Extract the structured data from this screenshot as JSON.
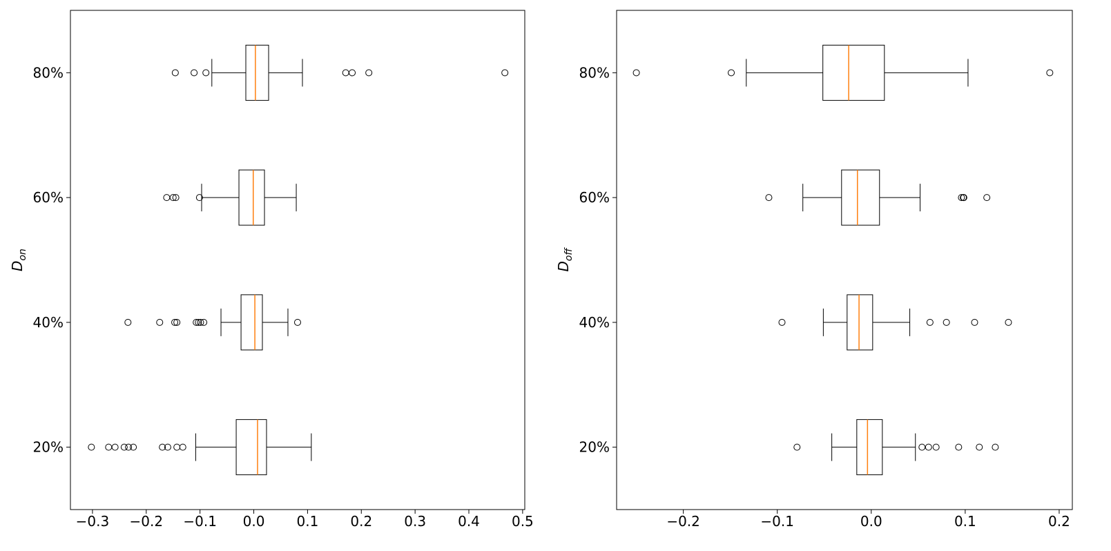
{
  "chart_data": [
    {
      "type": "box",
      "ylabel": "D",
      "ylabel_sub": "on",
      "categories": [
        "20%",
        "40%",
        "60%",
        "80%"
      ],
      "box_color": "#000000",
      "median_color": "#ff7f0e",
      "xlim": [
        -0.341,
        0.504
      ],
      "xticks": [
        {
          "value": -0.3,
          "label": "−0.3"
        },
        {
          "value": -0.2,
          "label": "−0.2"
        },
        {
          "value": -0.1,
          "label": "−0.1"
        },
        {
          "value": 0,
          "label": "0.0"
        },
        0.1,
        0.2,
        0.3,
        0.4,
        0.5
      ],
      "boxes": [
        {
          "whislo": -0.108,
          "q1": -0.0327,
          "med": 0.007,
          "q3": 0.0237,
          "whishi": 0.107,
          "fliers": [
            -0.302,
            -0.27,
            -0.258,
            -0.241,
            -0.233,
            -0.224,
            -0.17,
            -0.16,
            -0.143,
            -0.132
          ]
        },
        {
          "whislo": -0.061,
          "q1": -0.0237,
          "med": 0.002,
          "q3": 0.016,
          "whishi": 0.0635,
          "fliers": [
            -0.234,
            -0.175,
            -0.147,
            -0.143,
            -0.107,
            -0.103,
            -0.099,
            -0.093,
            0.0815
          ]
        },
        {
          "whislo": -0.097,
          "q1": -0.0276,
          "med": -0.001,
          "q3": 0.0199,
          "whishi": 0.079,
          "fliers": [
            -0.162,
            -0.15,
            -0.145,
            -0.101
          ]
        },
        {
          "whislo": -0.078,
          "q1": -0.0148,
          "med": 0.003,
          "q3": 0.0276,
          "whishi": 0.0905,
          "fliers": [
            -0.146,
            -0.111,
            -0.089,
            0.171,
            0.183,
            0.214,
            0.467
          ]
        }
      ]
    },
    {
      "type": "box",
      "ylabel": "D",
      "ylabel_sub": "off",
      "categories": [
        "20%",
        "40%",
        "60%",
        "80%"
      ],
      "box_color": "#000000",
      "median_color": "#ff7f0e",
      "xlim": [
        -0.271,
        0.214
      ],
      "xticks": [
        {
          "value": -0.2,
          "label": "−0.2"
        },
        {
          "value": -0.1,
          "label": "−0.1"
        },
        {
          "value": 0,
          "label": "0.0"
        },
        0.1,
        0.2
      ],
      "boxes": [
        {
          "whislo": -0.042,
          "q1": -0.0154,
          "med": -0.004,
          "q3": 0.0118,
          "whishi": 0.047,
          "fliers": [
            -0.079,
            0.054,
            0.061,
            0.069,
            0.093,
            0.115,
            0.132
          ]
        },
        {
          "whislo": -0.051,
          "q1": -0.0257,
          "med": -0.013,
          "q3": 0.0015,
          "whishi": 0.041,
          "fliers": [
            -0.095,
            0.0625,
            0.08,
            0.11,
            0.146
          ]
        },
        {
          "whislo": -0.0728,
          "q1": -0.0316,
          "med": -0.0147,
          "q3": 0.0088,
          "whishi": 0.052,
          "fliers": [
            -0.109,
            0.096,
            0.098,
            0.0985,
            0.123
          ]
        },
        {
          "whislo": -0.133,
          "q1": -0.0515,
          "med": -0.024,
          "q3": 0.014,
          "whishi": 0.103,
          "fliers": [
            -0.25,
            -0.149,
            0.19
          ]
        }
      ]
    }
  ]
}
